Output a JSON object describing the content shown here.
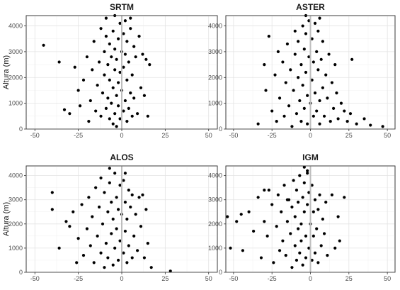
{
  "chart_data": {
    "type": "scatter",
    "y_axis_label": "Altura (m)",
    "xlim": [
      -55,
      55
    ],
    "ylim": [
      0,
      4400
    ],
    "x_ticks": [
      -50,
      -25,
      0,
      25,
      50
    ],
    "y_ticks": [
      0,
      1000,
      2000,
      3000,
      4000
    ],
    "grid": true,
    "reference_line_x": 0,
    "point_color": "#000000",
    "panels": [
      {
        "title": "SRTM",
        "points": [
          [
            -45,
            3250
          ],
          [
            -36,
            2600
          ],
          [
            -33,
            750
          ],
          [
            -30,
            600
          ],
          [
            -27,
            2400
          ],
          [
            -25,
            1500
          ],
          [
            -24,
            900
          ],
          [
            -22,
            1900
          ],
          [
            -20,
            2800
          ],
          [
            -19,
            300
          ],
          [
            -18,
            1100
          ],
          [
            -17,
            2300
          ],
          [
            -16,
            3400
          ],
          [
            -15,
            700
          ],
          [
            -14,
            1700
          ],
          [
            -13,
            2600
          ],
          [
            -12,
            3900
          ],
          [
            -12,
            500
          ],
          [
            -11,
            1400
          ],
          [
            -10,
            2100
          ],
          [
            -10,
            3000
          ],
          [
            -9,
            800
          ],
          [
            -9,
            3600
          ],
          [
            -8,
            1200
          ],
          [
            -8,
            2500
          ],
          [
            -7,
            400
          ],
          [
            -7,
            1900
          ],
          [
            -7,
            3300
          ],
          [
            -6,
            2800
          ],
          [
            -6,
            1000
          ],
          [
            -5,
            200
          ],
          [
            -5,
            1600
          ],
          [
            -5,
            3800
          ],
          [
            -4,
            2300
          ],
          [
            -4,
            600
          ],
          [
            -4,
            3100
          ],
          [
            -3,
            1300
          ],
          [
            -3,
            2700
          ],
          [
            -3,
            100
          ],
          [
            -2,
            1800
          ],
          [
            -2,
            3500
          ],
          [
            -2,
            900
          ],
          [
            -1,
            2200
          ],
          [
            -1,
            400
          ],
          [
            -1,
            4100
          ],
          [
            0,
            3000
          ],
          [
            0,
            1500
          ],
          [
            1,
            3700
          ],
          [
            1,
            700
          ],
          [
            1,
            2400
          ],
          [
            2,
            1100
          ],
          [
            2,
            2900
          ],
          [
            2,
            4200
          ],
          [
            3,
            300
          ],
          [
            3,
            1900
          ],
          [
            3,
            3400
          ],
          [
            4,
            800
          ],
          [
            4,
            2600
          ],
          [
            5,
            1400
          ],
          [
            5,
            3900
          ],
          [
            6,
            500
          ],
          [
            6,
            2100
          ],
          [
            7,
            3200
          ],
          [
            7,
            1200
          ],
          [
            8,
            2800
          ],
          [
            9,
            600
          ],
          [
            10,
            3600
          ],
          [
            11,
            1600
          ],
          [
            12,
            2900
          ],
          [
            13,
            1300
          ],
          [
            14,
            2700
          ],
          [
            15,
            500
          ],
          [
            16,
            2500
          ],
          [
            -9,
            4300
          ],
          [
            -4,
            4400
          ],
          [
            5,
            4300
          ]
        ]
      },
      {
        "title": "ASTER",
        "points": [
          [
            -34,
            200
          ],
          [
            -30,
            2500
          ],
          [
            -29,
            1500
          ],
          [
            -27,
            3600
          ],
          [
            -25,
            700
          ],
          [
            -23,
            2100
          ],
          [
            -22,
            300
          ],
          [
            -21,
            3000
          ],
          [
            -20,
            1200
          ],
          [
            -18,
            2600
          ],
          [
            -17,
            500
          ],
          [
            -16,
            1800
          ],
          [
            -15,
            3300
          ],
          [
            -14,
            900
          ],
          [
            -13,
            2300
          ],
          [
            -12,
            100
          ],
          [
            -11,
            1500
          ],
          [
            -10,
            2900
          ],
          [
            -10,
            3800
          ],
          [
            -9,
            600
          ],
          [
            -8,
            2000
          ],
          [
            -8,
            3400
          ],
          [
            -7,
            1100
          ],
          [
            -6,
            2500
          ],
          [
            -6,
            300
          ],
          [
            -5,
            4000
          ],
          [
            -5,
            1700
          ],
          [
            -4,
            3100
          ],
          [
            -4,
            800
          ],
          [
            -3,
            2200
          ],
          [
            -3,
            3700
          ],
          [
            -2,
            1300
          ],
          [
            -2,
            200
          ],
          [
            -1,
            2800
          ],
          [
            -1,
            4200
          ],
          [
            0,
            1000
          ],
          [
            1,
            3500
          ],
          [
            1,
            1900
          ],
          [
            2,
            500
          ],
          [
            2,
            2600
          ],
          [
            3,
            4100
          ],
          [
            3,
            1400
          ],
          [
            4,
            3000
          ],
          [
            4,
            700
          ],
          [
            5,
            2300
          ],
          [
            5,
            3800
          ],
          [
            6,
            1100
          ],
          [
            6,
            200
          ],
          [
            7,
            2700
          ],
          [
            8,
            1600
          ],
          [
            8,
            3400
          ],
          [
            9,
            500
          ],
          [
            10,
            2100
          ],
          [
            11,
            1200
          ],
          [
            12,
            2900
          ],
          [
            13,
            300
          ],
          [
            14,
            1800
          ],
          [
            15,
            800
          ],
          [
            16,
            2500
          ],
          [
            17,
            1400
          ],
          [
            18,
            400
          ],
          [
            20,
            1000
          ],
          [
            22,
            700
          ],
          [
            24,
            300
          ],
          [
            26,
            600
          ],
          [
            27,
            2700
          ],
          [
            30,
            200
          ],
          [
            35,
            400
          ],
          [
            39,
            150
          ],
          [
            47,
            100
          ],
          [
            -3,
            4400
          ],
          [
            6,
            4300
          ]
        ]
      },
      {
        "title": "ALOS",
        "points": [
          [
            -40,
            3300
          ],
          [
            -40,
            2600
          ],
          [
            -36,
            1000
          ],
          [
            -32,
            2100
          ],
          [
            -30,
            1900
          ],
          [
            -28,
            2500
          ],
          [
            -26,
            400
          ],
          [
            -25,
            1400
          ],
          [
            -23,
            2800
          ],
          [
            -22,
            700
          ],
          [
            -20,
            1800
          ],
          [
            -19,
            3100
          ],
          [
            -18,
            1100
          ],
          [
            -17,
            2300
          ],
          [
            -16,
            400
          ],
          [
            -15,
            3500
          ],
          [
            -14,
            1500
          ],
          [
            -13,
            2700
          ],
          [
            -12,
            800
          ],
          [
            -12,
            3900
          ],
          [
            -11,
            2000
          ],
          [
            -10,
            200
          ],
          [
            -10,
            3300
          ],
          [
            -9,
            1200
          ],
          [
            -8,
            2500
          ],
          [
            -8,
            600
          ],
          [
            -7,
            3700
          ],
          [
            -6,
            1600
          ],
          [
            -6,
            2900
          ],
          [
            -5,
            300
          ],
          [
            -5,
            2200
          ],
          [
            -4,
            4100
          ],
          [
            -4,
            1000
          ],
          [
            -3,
            3100
          ],
          [
            -3,
            1800
          ],
          [
            -2,
            500
          ],
          [
            -2,
            2600
          ],
          [
            -1,
            3600
          ],
          [
            -1,
            1300
          ],
          [
            0,
            2400
          ],
          [
            1,
            800
          ],
          [
            1,
            3800
          ],
          [
            2,
            1700
          ],
          [
            2,
            2900
          ],
          [
            3,
            400
          ],
          [
            3,
            2200
          ],
          [
            4,
            3400
          ],
          [
            4,
            1100
          ],
          [
            5,
            2700
          ],
          [
            6,
            600
          ],
          [
            6,
            3200
          ],
          [
            7,
            1500
          ],
          [
            8,
            2400
          ],
          [
            9,
            900
          ],
          [
            10,
            3100
          ],
          [
            11,
            1900
          ],
          [
            12,
            3200
          ],
          [
            13,
            600
          ],
          [
            14,
            2600
          ],
          [
            15,
            1200
          ],
          [
            17,
            200
          ],
          [
            28,
            50
          ],
          [
            -7,
            4300
          ],
          [
            2,
            4100
          ]
        ]
      },
      {
        "title": "IGM",
        "points": [
          [
            -54,
            2300
          ],
          [
            -52,
            1000
          ],
          [
            -48,
            2100
          ],
          [
            -45,
            2400
          ],
          [
            -44,
            900
          ],
          [
            -40,
            2500
          ],
          [
            -37,
            1700
          ],
          [
            -34,
            3100
          ],
          [
            -32,
            600
          ],
          [
            -30,
            2100
          ],
          [
            -28,
            1500
          ],
          [
            -27,
            3400
          ],
          [
            -25,
            2800
          ],
          [
            -24,
            400
          ],
          [
            -22,
            1900
          ],
          [
            -21,
            3200
          ],
          [
            -20,
            900
          ],
          [
            -19,
            2500
          ],
          [
            -18,
            1300
          ],
          [
            -17,
            3600
          ],
          [
            -16,
            700
          ],
          [
            -15,
            2100
          ],
          [
            -14,
            3000
          ],
          [
            -13,
            1600
          ],
          [
            -12,
            200
          ],
          [
            -12,
            2700
          ],
          [
            -11,
            3800
          ],
          [
            -10,
            1100
          ],
          [
            -10,
            2300
          ],
          [
            -9,
            500
          ],
          [
            -9,
            3400
          ],
          [
            -8,
            1800
          ],
          [
            -8,
            2900
          ],
          [
            -7,
            800
          ],
          [
            -7,
            4000
          ],
          [
            -6,
            2000
          ],
          [
            -6,
            1300
          ],
          [
            -5,
            3100
          ],
          [
            -5,
            300
          ],
          [
            -4,
            2500
          ],
          [
            -4,
            3700
          ],
          [
            -3,
            1500
          ],
          [
            -3,
            600
          ],
          [
            -2,
            2800
          ],
          [
            -2,
            4200
          ],
          [
            -1,
            1000
          ],
          [
            -1,
            3300
          ],
          [
            0,
            2000
          ],
          [
            1,
            500
          ],
          [
            1,
            3600
          ],
          [
            2,
            1500
          ],
          [
            2,
            2500
          ],
          [
            3,
            800
          ],
          [
            3,
            3000
          ],
          [
            4,
            1800
          ],
          [
            5,
            2600
          ],
          [
            5,
            400
          ],
          [
            6,
            3200
          ],
          [
            7,
            1100
          ],
          [
            8,
            2200
          ],
          [
            9,
            1600
          ],
          [
            10,
            2900
          ],
          [
            11,
            700
          ],
          [
            14,
            3200
          ],
          [
            16,
            1000
          ],
          [
            18,
            2300
          ],
          [
            19,
            1300
          ],
          [
            22,
            3100
          ],
          [
            -30,
            3400
          ],
          [
            -15,
            3000
          ],
          [
            -4,
            4350
          ],
          [
            -2,
            4100
          ]
        ]
      }
    ]
  }
}
